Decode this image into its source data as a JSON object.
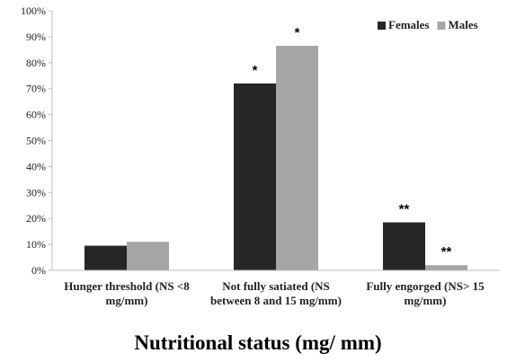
{
  "chart_data": {
    "type": "bar",
    "xlabel": "Nutritional status (mg/ mm)",
    "ylabel": "",
    "ylim": [
      0,
      100
    ],
    "ytick_step": 10,
    "ytick_suffix": "%",
    "grid": false,
    "legend_position": "top-right",
    "categories": [
      [
        "Hunger threshold (NS <8",
        "mg/mm)"
      ],
      [
        "Not fully satiated (NS",
        "between 8 and 15 mg/mm)"
      ],
      [
        "Fully engorged (NS> 15",
        "mg/mm)"
      ]
    ],
    "series": [
      {
        "name": "Females",
        "color": "#262626",
        "values": [
          9.5,
          72,
          18.5
        ],
        "annotations": [
          "",
          "*",
          "**"
        ]
      },
      {
        "name": "Males",
        "color": "#a6a6a6",
        "values": [
          11,
          86.5,
          2
        ],
        "annotations": [
          "",
          "*",
          "**"
        ]
      }
    ]
  }
}
